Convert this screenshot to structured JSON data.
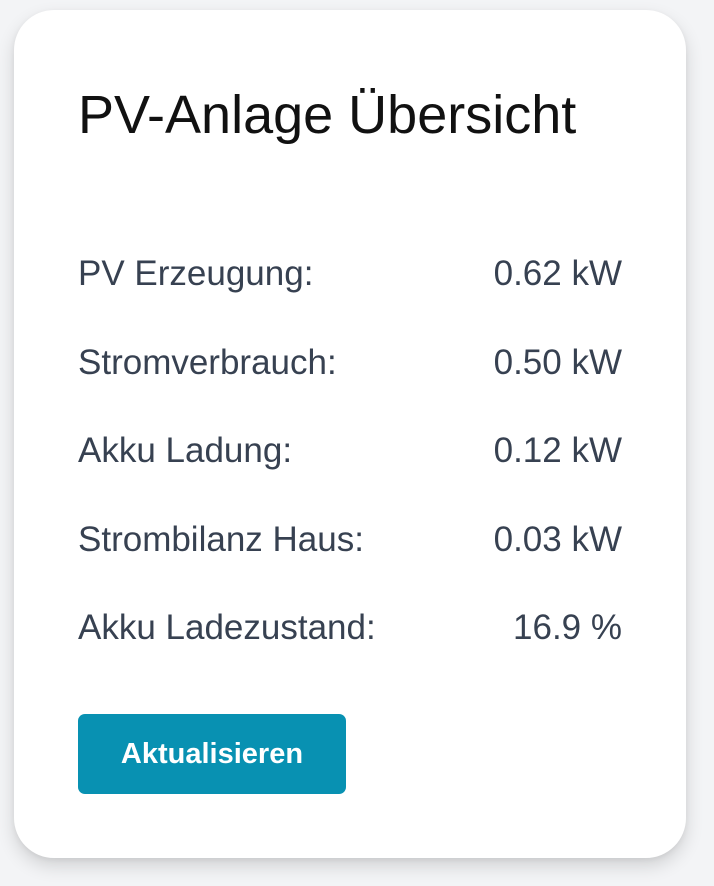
{
  "card": {
    "title": "PV-Anlage Übersicht"
  },
  "metrics": [
    {
      "label": "PV Erzeugung:",
      "value": "0.62 kW"
    },
    {
      "label": "Stromverbrauch:",
      "value": "0.50 kW"
    },
    {
      "label": "Akku Ladung:",
      "value": "0.12 kW"
    },
    {
      "label": "Strombilanz Haus:",
      "value": "0.03 kW"
    },
    {
      "label": "Akku Ladezustand:",
      "value": "16.9 %"
    }
  ],
  "actions": {
    "refresh_label": "Aktualisieren"
  },
  "colors": {
    "accent": "#0891b2",
    "text": "#374151",
    "background": "#f3f4f6"
  }
}
